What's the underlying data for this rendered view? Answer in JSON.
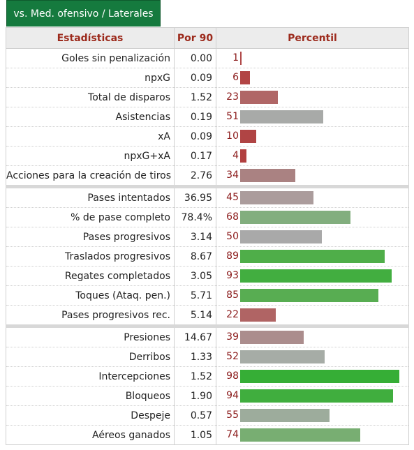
{
  "tab": {
    "label": "vs. Med. ofensivo / Laterales"
  },
  "headers": {
    "stat": "Estadísticas",
    "per90": "Por 90",
    "percentile": "Percentil"
  },
  "groups": [
    [
      {
        "name": "Goles sin penalización",
        "value": "0.00",
        "percentile": 1,
        "color": "#b04848"
      },
      {
        "name": "npxG",
        "value": "0.09",
        "percentile": 6,
        "color": "#b24444"
      },
      {
        "name": "Total de disparos",
        "value": "1.52",
        "percentile": 23,
        "color": "#b06666"
      },
      {
        "name": "Asistencias",
        "value": "0.19",
        "percentile": 51,
        "color": "#a8aaa8"
      },
      {
        "name": "xA",
        "value": "0.09",
        "percentile": 10,
        "color": "#b04444"
      },
      {
        "name": "npxG+xA",
        "value": "0.17",
        "percentile": 4,
        "color": "#b24040"
      },
      {
        "name": "Acciones para la creación de tiros",
        "value": "2.76",
        "percentile": 34,
        "color": "#aa8282"
      }
    ],
    [
      {
        "name": "Pases intentados",
        "value": "36.95",
        "percentile": 45,
        "color": "#ab9c9c"
      },
      {
        "name": "% de pase completo",
        "value": "78.4%",
        "percentile": 68,
        "color": "#82ae7e"
      },
      {
        "name": "Pases progresivos",
        "value": "3.14",
        "percentile": 50,
        "color": "#a9a9a9"
      },
      {
        "name": "Traslados progresivos",
        "value": "8.67",
        "percentile": 89,
        "color": "#4fae49"
      },
      {
        "name": "Regates completados",
        "value": "3.05",
        "percentile": 93,
        "color": "#42ae40"
      },
      {
        "name": "Toques (Ataq. pen.)",
        "value": "5.71",
        "percentile": 85,
        "color": "#58ad52"
      },
      {
        "name": "Pases progresivos rec.",
        "value": "5.14",
        "percentile": 22,
        "color": "#b06464"
      }
    ],
    [
      {
        "name": "Presiones",
        "value": "14.67",
        "percentile": 39,
        "color": "#ab8d8d"
      },
      {
        "name": "Derribos",
        "value": "1.33",
        "percentile": 52,
        "color": "#a6aca6"
      },
      {
        "name": "Intercepciones",
        "value": "1.52",
        "percentile": 98,
        "color": "#36ae36"
      },
      {
        "name": "Bloqueos",
        "value": "1.90",
        "percentile": 94,
        "color": "#40ae3e"
      },
      {
        "name": "Despeje",
        "value": "0.57",
        "percentile": 55,
        "color": "#9dac9c"
      },
      {
        "name": "Aéreos ganados",
        "value": "1.05",
        "percentile": 74,
        "color": "#78ae72"
      }
    ]
  ]
}
